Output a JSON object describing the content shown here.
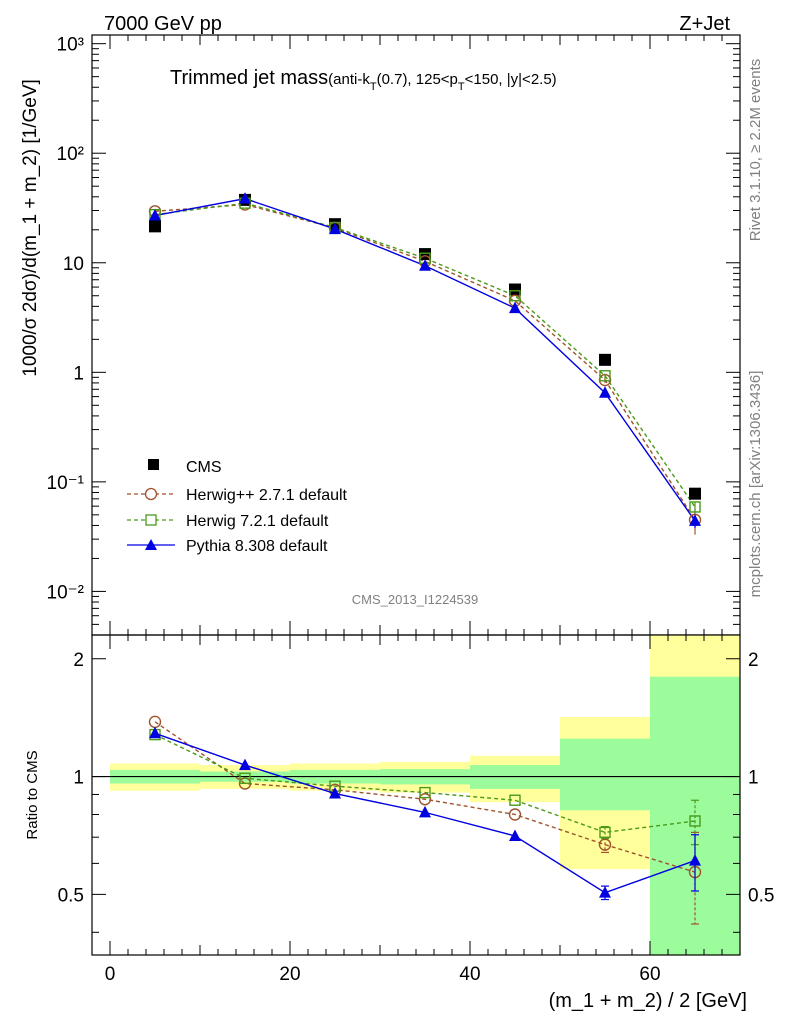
{
  "header": {
    "left": "7000 GeV pp",
    "right": "Z+Jet"
  },
  "side_labels": {
    "rivet": "Rivet 3.1.10, ≥ 2.2M events",
    "mcplots": "mcplots.cern.ch [arXiv:1306.3436]"
  },
  "analysis_id": "CMS_2013_I1224539",
  "colors": {
    "cms": "#000000",
    "herwigpp": "#a0522d",
    "herwig7": "#4a9a1a",
    "pythia": "#0000e0",
    "band_yellow": "#ffff9c",
    "band_green": "#9cfc9c"
  },
  "chart_data": [
    {
      "type": "scatter",
      "panel": "main",
      "title_main": "Trimmed jet mass",
      "title_sub_parts": [
        "(anti-k",
        "T",
        "(0.7), 125<p",
        "T",
        "<150, |y|<2.5)"
      ],
      "ylabel": "1000/σ 2dσ)/d(m_1 + m_2) [1/GeV]",
      "yscale": "log",
      "ylim": [
        0.004,
        1200
      ],
      "xlim": [
        -2,
        70
      ],
      "y_tick_labels": [
        "10⁻²",
        "10⁻¹",
        "1",
        "10",
        "10²",
        "10³"
      ],
      "legend_position": "lower-left",
      "x": [
        5,
        15,
        25,
        35,
        45,
        55,
        65
      ],
      "series": [
        {
          "name": "CMS",
          "marker": "filled-square",
          "values": [
            21.5,
            37.5,
            22.5,
            12.0,
            5.7,
            1.3,
            0.078
          ]
        },
        {
          "name": "Herwig++ 2.7.1 default",
          "marker": "open-circle",
          "line": "dashed",
          "values": [
            29.5,
            34.0,
            20.8,
            10.3,
            4.5,
            0.85,
            0.045
          ],
          "err": [
            0,
            0,
            0,
            0,
            0,
            0.05,
            0.012
          ]
        },
        {
          "name": "Herwig 7.2.1 default",
          "marker": "open-square",
          "line": "dashed",
          "values": [
            27.5,
            35.0,
            21.0,
            11.0,
            5.0,
            0.93,
            0.059
          ],
          "err": [
            0,
            0,
            0,
            0,
            0,
            0.04,
            0.006
          ]
        },
        {
          "name": "Pythia 8.308 default",
          "marker": "filled-triangle",
          "line": "solid",
          "values": [
            27.0,
            38.5,
            20.3,
            9.4,
            3.85,
            0.65,
            0.044
          ],
          "err": [
            0,
            0,
            0,
            0,
            0,
            0.03,
            0.006
          ]
        }
      ]
    },
    {
      "type": "line",
      "panel": "ratio",
      "ylabel": "Ratio to CMS",
      "xlabel": "(m_1 + m_2) / 2 [GeV]",
      "ylim": [
        0.35,
        2.3
      ],
      "xlim": [
        -2,
        70
      ],
      "x_ticks": [
        0,
        20,
        40,
        60
      ],
      "y_ticks": [
        0.5,
        1,
        2
      ],
      "reference_line": 1,
      "x": [
        5,
        15,
        25,
        35,
        45,
        55,
        65
      ],
      "bins": [
        [
          0,
          10
        ],
        [
          10,
          20
        ],
        [
          20,
          30
        ],
        [
          30,
          40
        ],
        [
          40,
          50
        ],
        [
          50,
          60
        ],
        [
          60,
          70
        ]
      ],
      "band_yellow": [
        [
          0.92,
          1.08
        ],
        [
          0.93,
          1.07
        ],
        [
          0.92,
          1.08
        ],
        [
          0.91,
          1.09
        ],
        [
          0.86,
          1.13
        ],
        [
          0.58,
          1.42
        ],
        [
          0.35,
          2.3
        ]
      ],
      "band_green": [
        [
          0.96,
          1.04
        ],
        [
          0.97,
          1.03
        ],
        [
          0.96,
          1.04
        ],
        [
          0.955,
          1.045
        ],
        [
          0.93,
          1.07
        ],
        [
          0.82,
          1.25
        ],
        [
          0.35,
          1.8
        ]
      ],
      "series": [
        {
          "name": "Herwig++ 2.7.1 default",
          "values": [
            1.38,
            0.96,
            0.925,
            0.875,
            0.8,
            0.67,
            0.57
          ],
          "err": [
            0,
            0,
            0,
            0,
            0,
            0.03,
            0.15
          ]
        },
        {
          "name": "Herwig 7.2.1 default",
          "values": [
            1.28,
            0.99,
            0.945,
            0.91,
            0.87,
            0.72,
            0.77
          ],
          "err": [
            0,
            0,
            0,
            0,
            0,
            0.025,
            0.1
          ]
        },
        {
          "name": "Pythia 8.308 default",
          "values": [
            1.29,
            1.07,
            0.905,
            0.81,
            0.705,
            0.505,
            0.61
          ],
          "err": [
            0,
            0,
            0,
            0,
            0,
            0.02,
            0.1
          ]
        }
      ]
    }
  ]
}
